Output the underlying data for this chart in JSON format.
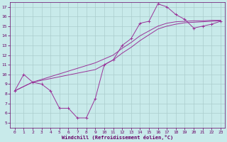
{
  "xlabel": "Windchill (Refroidissement éolien,°C)",
  "x_ticks": [
    0,
    1,
    2,
    3,
    4,
    5,
    6,
    7,
    8,
    9,
    10,
    11,
    12,
    13,
    14,
    15,
    16,
    17,
    18,
    19,
    20,
    21,
    22,
    23
  ],
  "ylim": [
    4.5,
    17.5
  ],
  "xlim": [
    -0.5,
    23.5
  ],
  "yticks": [
    5,
    6,
    7,
    8,
    9,
    10,
    11,
    12,
    13,
    14,
    15,
    16,
    17
  ],
  "bg_color": "#c8eaea",
  "grid_color": "#aacccc",
  "line_color": "#993399",
  "line1_x": [
    0,
    1,
    2,
    3,
    4,
    5,
    6,
    7,
    8,
    9,
    10,
    11,
    12,
    13,
    14,
    15,
    16,
    17,
    18,
    19,
    20,
    21,
    22,
    23
  ],
  "line1_y": [
    8.3,
    10.0,
    9.2,
    9.0,
    8.3,
    6.5,
    6.5,
    5.5,
    5.5,
    7.5,
    11.0,
    11.5,
    13.0,
    13.7,
    15.3,
    15.5,
    17.3,
    17.0,
    16.2,
    15.7,
    14.8,
    15.0,
    15.2,
    15.5
  ],
  "line2_x": [
    0,
    2,
    9,
    11,
    12,
    13,
    14,
    15,
    16,
    17,
    18,
    19,
    20,
    21,
    22,
    23
  ],
  "line2_y": [
    8.3,
    9.2,
    10.5,
    11.5,
    12.2,
    12.8,
    13.5,
    14.1,
    14.7,
    15.0,
    15.2,
    15.35,
    15.4,
    15.45,
    15.5,
    15.55
  ],
  "line3_x": [
    0,
    2,
    9,
    11,
    12,
    13,
    14,
    15,
    16,
    17,
    18,
    19,
    20,
    21,
    22,
    23
  ],
  "line3_y": [
    8.3,
    9.2,
    11.2,
    12.0,
    12.7,
    13.3,
    14.0,
    14.5,
    15.0,
    15.3,
    15.45,
    15.5,
    15.55,
    15.55,
    15.6,
    15.6
  ]
}
